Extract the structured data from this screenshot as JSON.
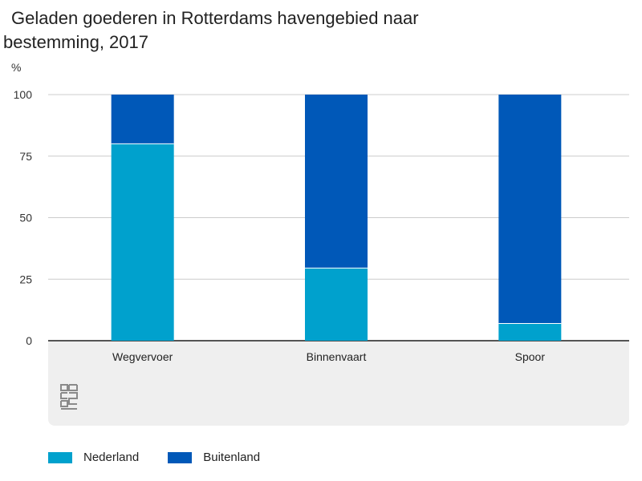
{
  "header": {
    "title": "Geladen goederen in Rotterdams havengebied naar bestemming, 2017",
    "unit": "%"
  },
  "logo": {
    "text": "cbs"
  },
  "colors": {
    "nederland": "#00a1cd",
    "buitenland": "#0058b8",
    "grid": "#cccccc",
    "baseline": "#555555",
    "footer_bg": "#efefef"
  },
  "chart_data": {
    "type": "bar",
    "stacked": true,
    "title": "Geladen goederen in Rotterdams havengebied naar bestemming, 2017",
    "ylabel": "%",
    "xlabel": "",
    "ylim": [
      0,
      100
    ],
    "yticks": [
      0,
      25,
      50,
      75,
      100
    ],
    "grid": true,
    "legend_position": "bottom-left",
    "categories": [
      "Wegvervoer",
      "Binnenvaart",
      "Spoor"
    ],
    "series": [
      {
        "name": "Nederland",
        "values": [
          80,
          29.5,
          7
        ],
        "color_key": "nederland"
      },
      {
        "name": "Buitenland",
        "values": [
          20,
          70.5,
          93
        ],
        "color_key": "buitenland"
      }
    ]
  }
}
